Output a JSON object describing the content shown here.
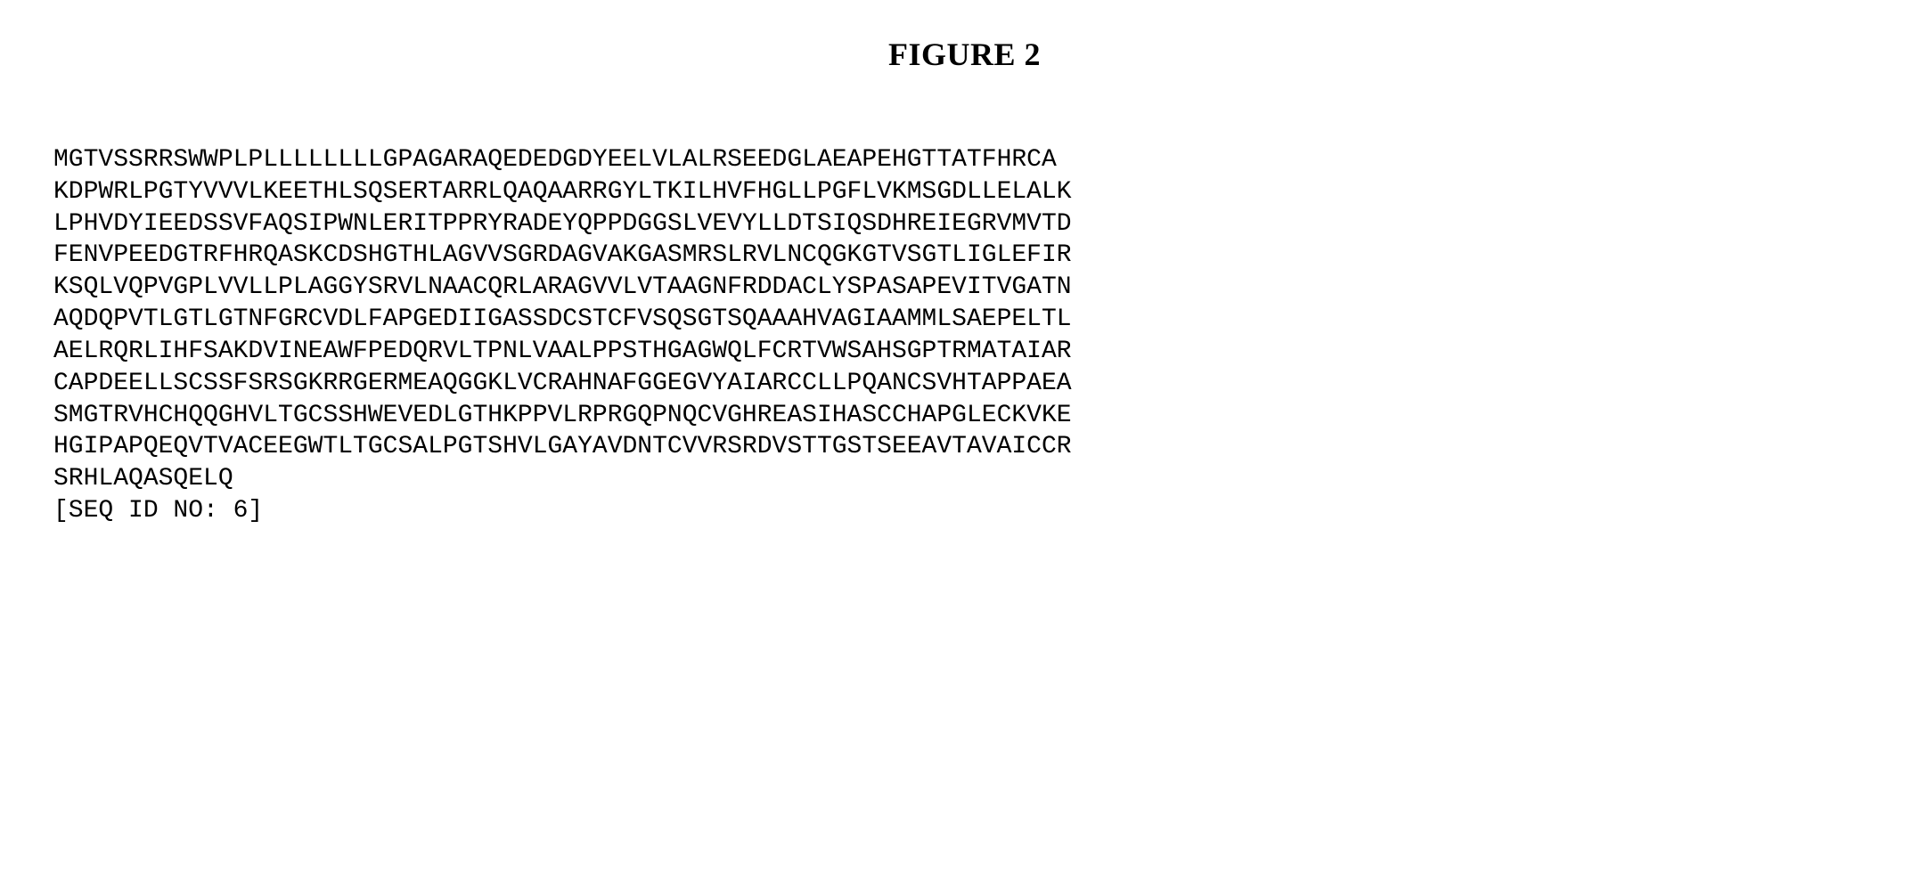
{
  "figure": {
    "title": "FIGURE 2",
    "title_fontsize": 36,
    "title_fontweight": "bold"
  },
  "sequence": {
    "lines": [
      "MGTVSSRRSWWPLPLLLLLLLLGPAGARAQEDEDGDYEELVLALRSEEDGLAEAPEHGTTATFHRCA",
      "KDPWRLPGTYVVVLKEETHLSQSERTARRLQAQAARRGYLTKILHVFHGLLPGFLVKMSGDLLELALK",
      "LPHVDYIEEDSSVFAQSIPWNLERITPPRYRADEYQPPDGGSLVEVYLLDTSIQSDHREIEGRVMVTD",
      "FENVPEEDGTRFHRQASKCDSHGTHLAGVVSGRDAGVAKGASMRSLRVLNCQGKGTVSGTLIGLEFIR",
      "KSQLVQPVGPLVVLLPLAGGYSRVLNAACQRLARAGVVLVTAAGNFRDDACLYSPASAPEVITVGATN",
      "AQDQPVTLGTLGTNFGRCVDLFAPGEDIIGASSDCSTCFVSQSGTSQAAAHVAGIAAMMLSAEPELTL",
      "AELRQRLIHFSAKDVINEAWFPEDQRVLTPNLVAALPPSTHGAGWQLFCRTVWSAHSGPTRMATAIAR",
      "CAPDEELLSCSSFSRSGKRRGERMEAQGGKLVCRAHNAFGGEGVYAIARCCLLPQANCSVHTAPPAEA",
      "SMGTRVHCHQQGHVLTGCSSHWEVEDLGTHKPPVLRPRGQPNQCVGHREASIHASCCHAPGLECKVKE",
      "HGIPAPQEQVTVACEEGWTLTGCSALPGTSHVLGAYAVDNTCVVRSRDVSTTGSTSEEAVTAVAICCR",
      "SRHLAQASQELQ"
    ],
    "seq_id": "[SEQ ID NO: 6]",
    "font_family": "Courier New",
    "font_size": 28,
    "line_height": 1.28
  },
  "colors": {
    "background": "#ffffff",
    "text": "#000000"
  }
}
